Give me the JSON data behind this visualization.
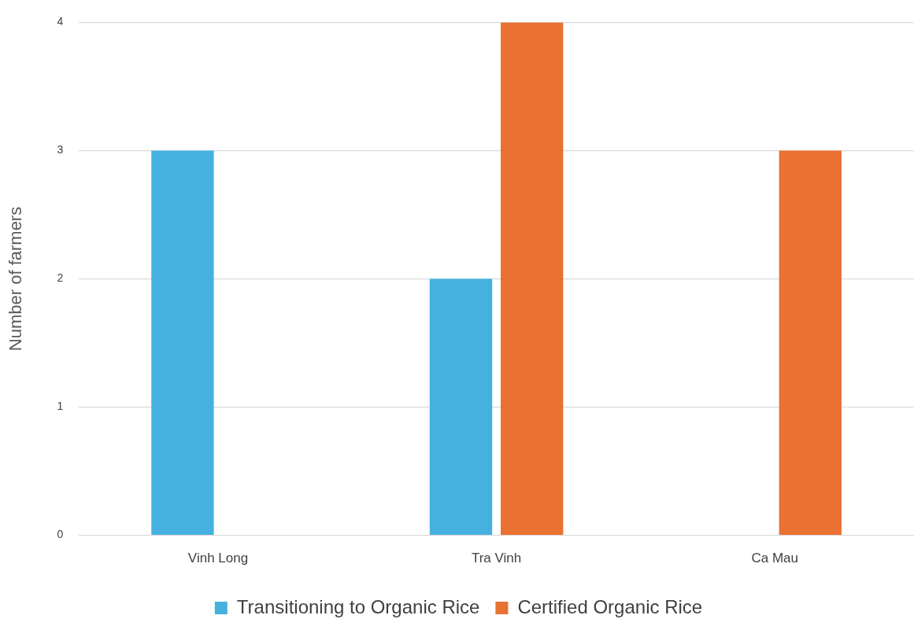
{
  "chart_data": {
    "type": "bar",
    "ylabel": "Number of farmers",
    "categories": [
      "Vinh Long",
      "Tra Vinh",
      "Ca Mau"
    ],
    "series": [
      {
        "name": "Transitioning to Organic Rice",
        "color": "#45b1e0",
        "values": [
          3,
          2,
          0
        ]
      },
      {
        "name": "Certified Organic Rice",
        "color": "#e97132",
        "values": [
          0,
          4,
          3
        ]
      }
    ],
    "ylim": [
      0,
      4
    ],
    "yticks": [
      0,
      1,
      2,
      3,
      4
    ],
    "grid": "y",
    "legend": "bottom"
  }
}
